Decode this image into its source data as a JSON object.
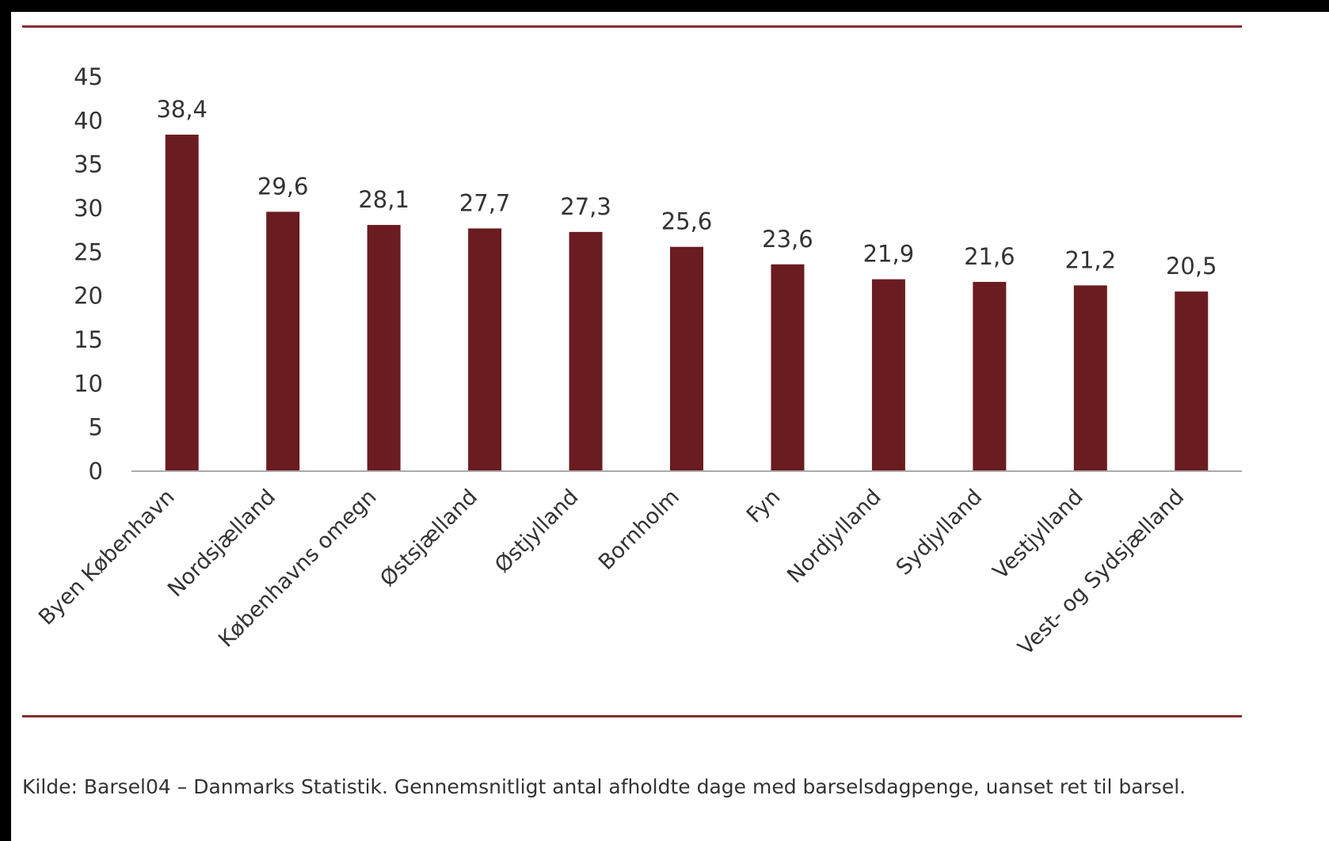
{
  "chart_data": {
    "type": "bar",
    "categories": [
      "Byen København",
      "Nordsjælland",
      "Københavns omegn",
      "Østsjælland",
      "Østjylland",
      "Bornholm",
      "Fyn",
      "Nordjylland",
      "Sydjylland",
      "Vestjylland",
      "Vest- og Sydsjælland"
    ],
    "values": [
      38.4,
      29.6,
      28.1,
      27.7,
      27.3,
      25.6,
      23.6,
      21.9,
      21.6,
      21.2,
      20.5
    ],
    "value_labels": [
      "38,4",
      "29,6",
      "28,1",
      "27,7",
      "27,3",
      "25,6",
      "23,6",
      "21,9",
      "21,6",
      "21,2",
      "20,5"
    ],
    "yticks": [
      "0",
      "5",
      "10",
      "15",
      "20",
      "25",
      "30",
      "35",
      "40",
      "45"
    ],
    "ylim": [
      0,
      45
    ],
    "xlabel": "",
    "ylabel": "",
    "bar_color": "#6b1c20",
    "grid": false
  },
  "source_note": "Kilde: Barsel04 – Danmarks Statistik. Gennemsnitligt antal afholdte dage med barselsdagpenge, uanset ret til barsel.",
  "colors": {
    "rule": "#8a2b30",
    "axis": "#aaaaaa",
    "text": "#333333"
  }
}
